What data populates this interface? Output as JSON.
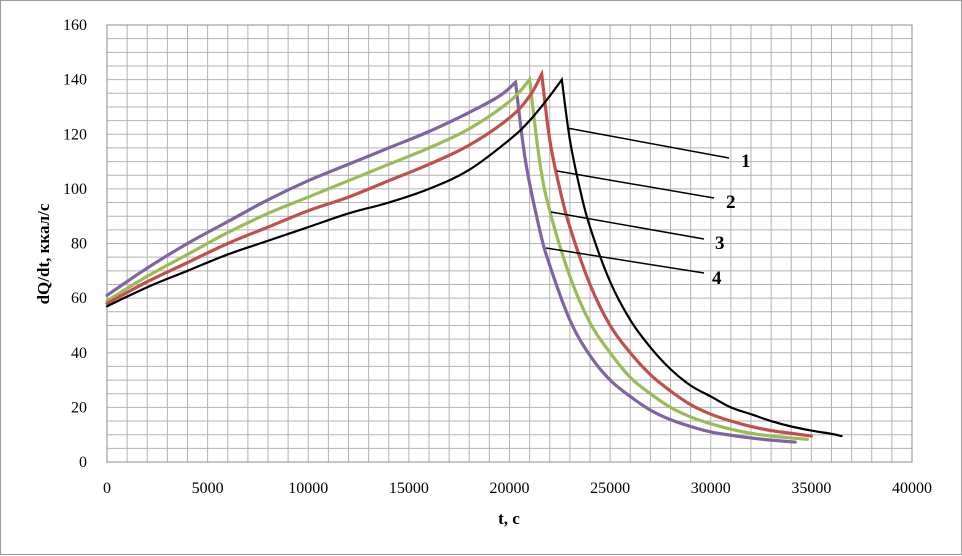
{
  "chart_data": {
    "type": "line",
    "title": "",
    "xlabel": "t, c",
    "ylabel": "dQ/dt, ккал/с",
    "xlim": [
      0,
      40000
    ],
    "ylim": [
      0,
      160
    ],
    "x_ticks": [
      "0",
      "5000",
      "10000",
      "15000",
      "20000",
      "25000",
      "30000",
      "35000",
      "40000"
    ],
    "y_ticks": [
      "0",
      "20",
      "40",
      "60",
      "80",
      "100",
      "120",
      "140",
      "160"
    ],
    "x_minor_step": 1000,
    "y_minor_step": 5,
    "grid": true,
    "legend": "none",
    "series": [
      {
        "name": "1",
        "color": "#000000",
        "x": [
          0,
          2000,
          4000,
          6000,
          8000,
          10000,
          12000,
          14000,
          16000,
          18000,
          20000,
          21000,
          22000,
          22600,
          23000,
          23500,
          24000,
          25000,
          26000,
          27000,
          28000,
          29000,
          30000,
          31000,
          32000,
          33000,
          34000,
          35000,
          36000,
          36500
        ],
        "y": [
          57,
          64,
          70,
          76,
          81,
          86,
          91,
          95,
          100,
          107,
          118,
          125,
          134,
          140,
          118,
          100,
          86,
          66,
          52,
          42,
          34,
          28,
          24,
          20,
          17.5,
          15,
          13,
          11.5,
          10.3,
          9.5
        ]
      },
      {
        "name": "2",
        "color": "#c0504d",
        "x": [
          0,
          2000,
          4000,
          6000,
          8000,
          10000,
          12000,
          14000,
          16000,
          18000,
          20000,
          21000,
          21600,
          22000,
          22500,
          23000,
          24000,
          25000,
          26000,
          27000,
          28000,
          29000,
          30000,
          31000,
          32000,
          33000,
          34000,
          35000
        ],
        "y": [
          58,
          66,
          73,
          80,
          86,
          92,
          97,
          103,
          109,
          116,
          126,
          134,
          142,
          118,
          100,
          86,
          65,
          50,
          40,
          32,
          26,
          21,
          17.5,
          15,
          13,
          11.5,
          10.5,
          9.5
        ]
      },
      {
        "name": "3",
        "color": "#9bbb59",
        "x": [
          0,
          2000,
          4000,
          6000,
          8000,
          10000,
          12000,
          14000,
          16000,
          18000,
          20000,
          21000,
          21500,
          22000,
          23000,
          24000,
          25000,
          26000,
          27000,
          28000,
          29000,
          30000,
          31000,
          32000,
          33000,
          34000,
          34800
        ],
        "y": [
          59,
          68,
          76,
          84,
          91,
          97,
          103,
          109,
          115,
          122,
          132,
          140,
          110,
          92,
          68,
          51,
          40,
          31,
          25,
          20,
          16.5,
          14,
          12,
          10.5,
          9.5,
          8.8,
          8.3
        ]
      },
      {
        "name": "4",
        "color": "#8064a2",
        "x": [
          0,
          2000,
          4000,
          6000,
          8000,
          10000,
          12000,
          14000,
          16000,
          18000,
          19500,
          20300,
          20800,
          21500,
          22000,
          23000,
          24000,
          25000,
          26000,
          27000,
          28000,
          29000,
          30000,
          31000,
          32000,
          33000,
          34200
        ],
        "y": [
          61,
          71,
          80,
          88,
          96,
          103,
          109,
          115,
          121,
          128,
          134,
          139,
          110,
          85,
          72,
          52,
          39,
          30,
          24,
          19,
          15.5,
          13,
          11,
          9.8,
          8.8,
          8,
          7.3
        ]
      }
    ],
    "annotations": [
      "1",
      "2",
      "3",
      "4"
    ]
  }
}
